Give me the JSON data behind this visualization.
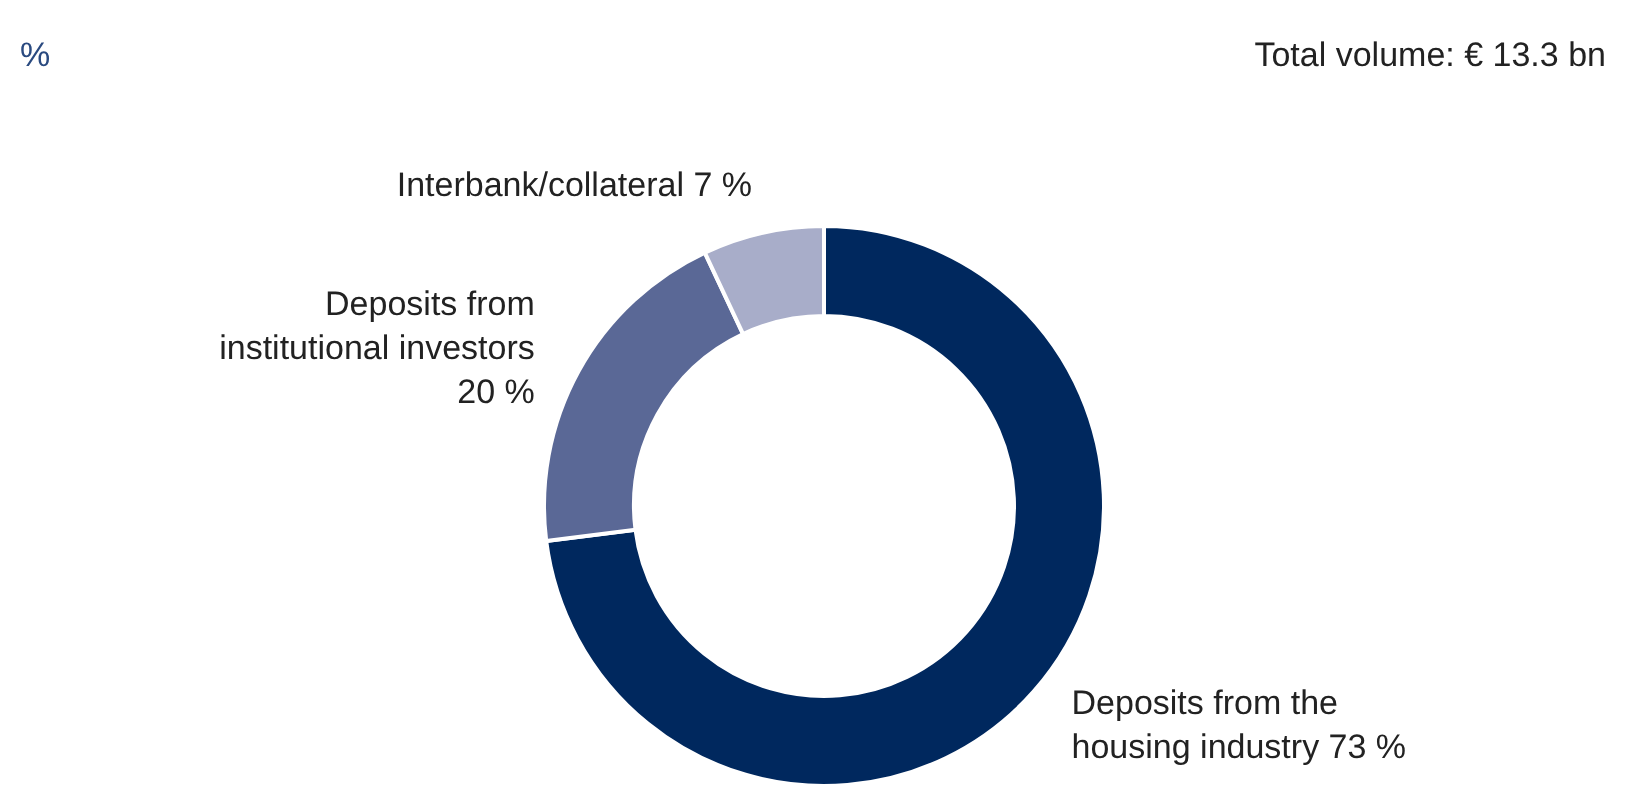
{
  "chart_data": {
    "type": "donut",
    "subtitle": "%",
    "annotations": [
      "Total volume: € 13.3 bn"
    ],
    "categories": [
      "Deposits from the housing industry",
      "Deposits from institutional investors",
      "Interbank/collateral"
    ],
    "values": [
      73,
      20,
      7
    ],
    "value_labels": [
      "73 %",
      "20 %",
      "7 %"
    ],
    "colors": [
      "#00285e",
      "#5a6896",
      "#a8adc9"
    ]
  }
}
